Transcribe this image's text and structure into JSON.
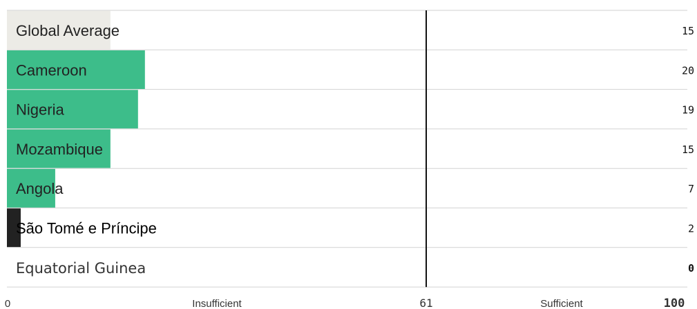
{
  "chart_data": {
    "type": "bar",
    "orientation": "horizontal",
    "categories": [
      "Global Average",
      "Cameroon",
      "Nigeria",
      "Mozambique",
      "Angola",
      "São Tomé e Príncipe",
      "Equatorial Guinea"
    ],
    "values": [
      15,
      20,
      19,
      15,
      7,
      2,
      0
    ],
    "value_labels": [
      "15",
      "20",
      "19",
      "15",
      "7",
      "2",
      "0"
    ],
    "xlim": [
      0,
      100
    ],
    "threshold": 61,
    "axis": {
      "min_label": "0",
      "threshold_label": "61",
      "max_label": "100",
      "left_zone_label": "Insufficient",
      "right_zone_label": "Sufficient"
    },
    "colors": {
      "global_average": "#ecebe6",
      "country": "#3dbd8a",
      "low": "#222222",
      "row_divider": "#d2d2d2",
      "threshold_line": "#111111"
    }
  }
}
